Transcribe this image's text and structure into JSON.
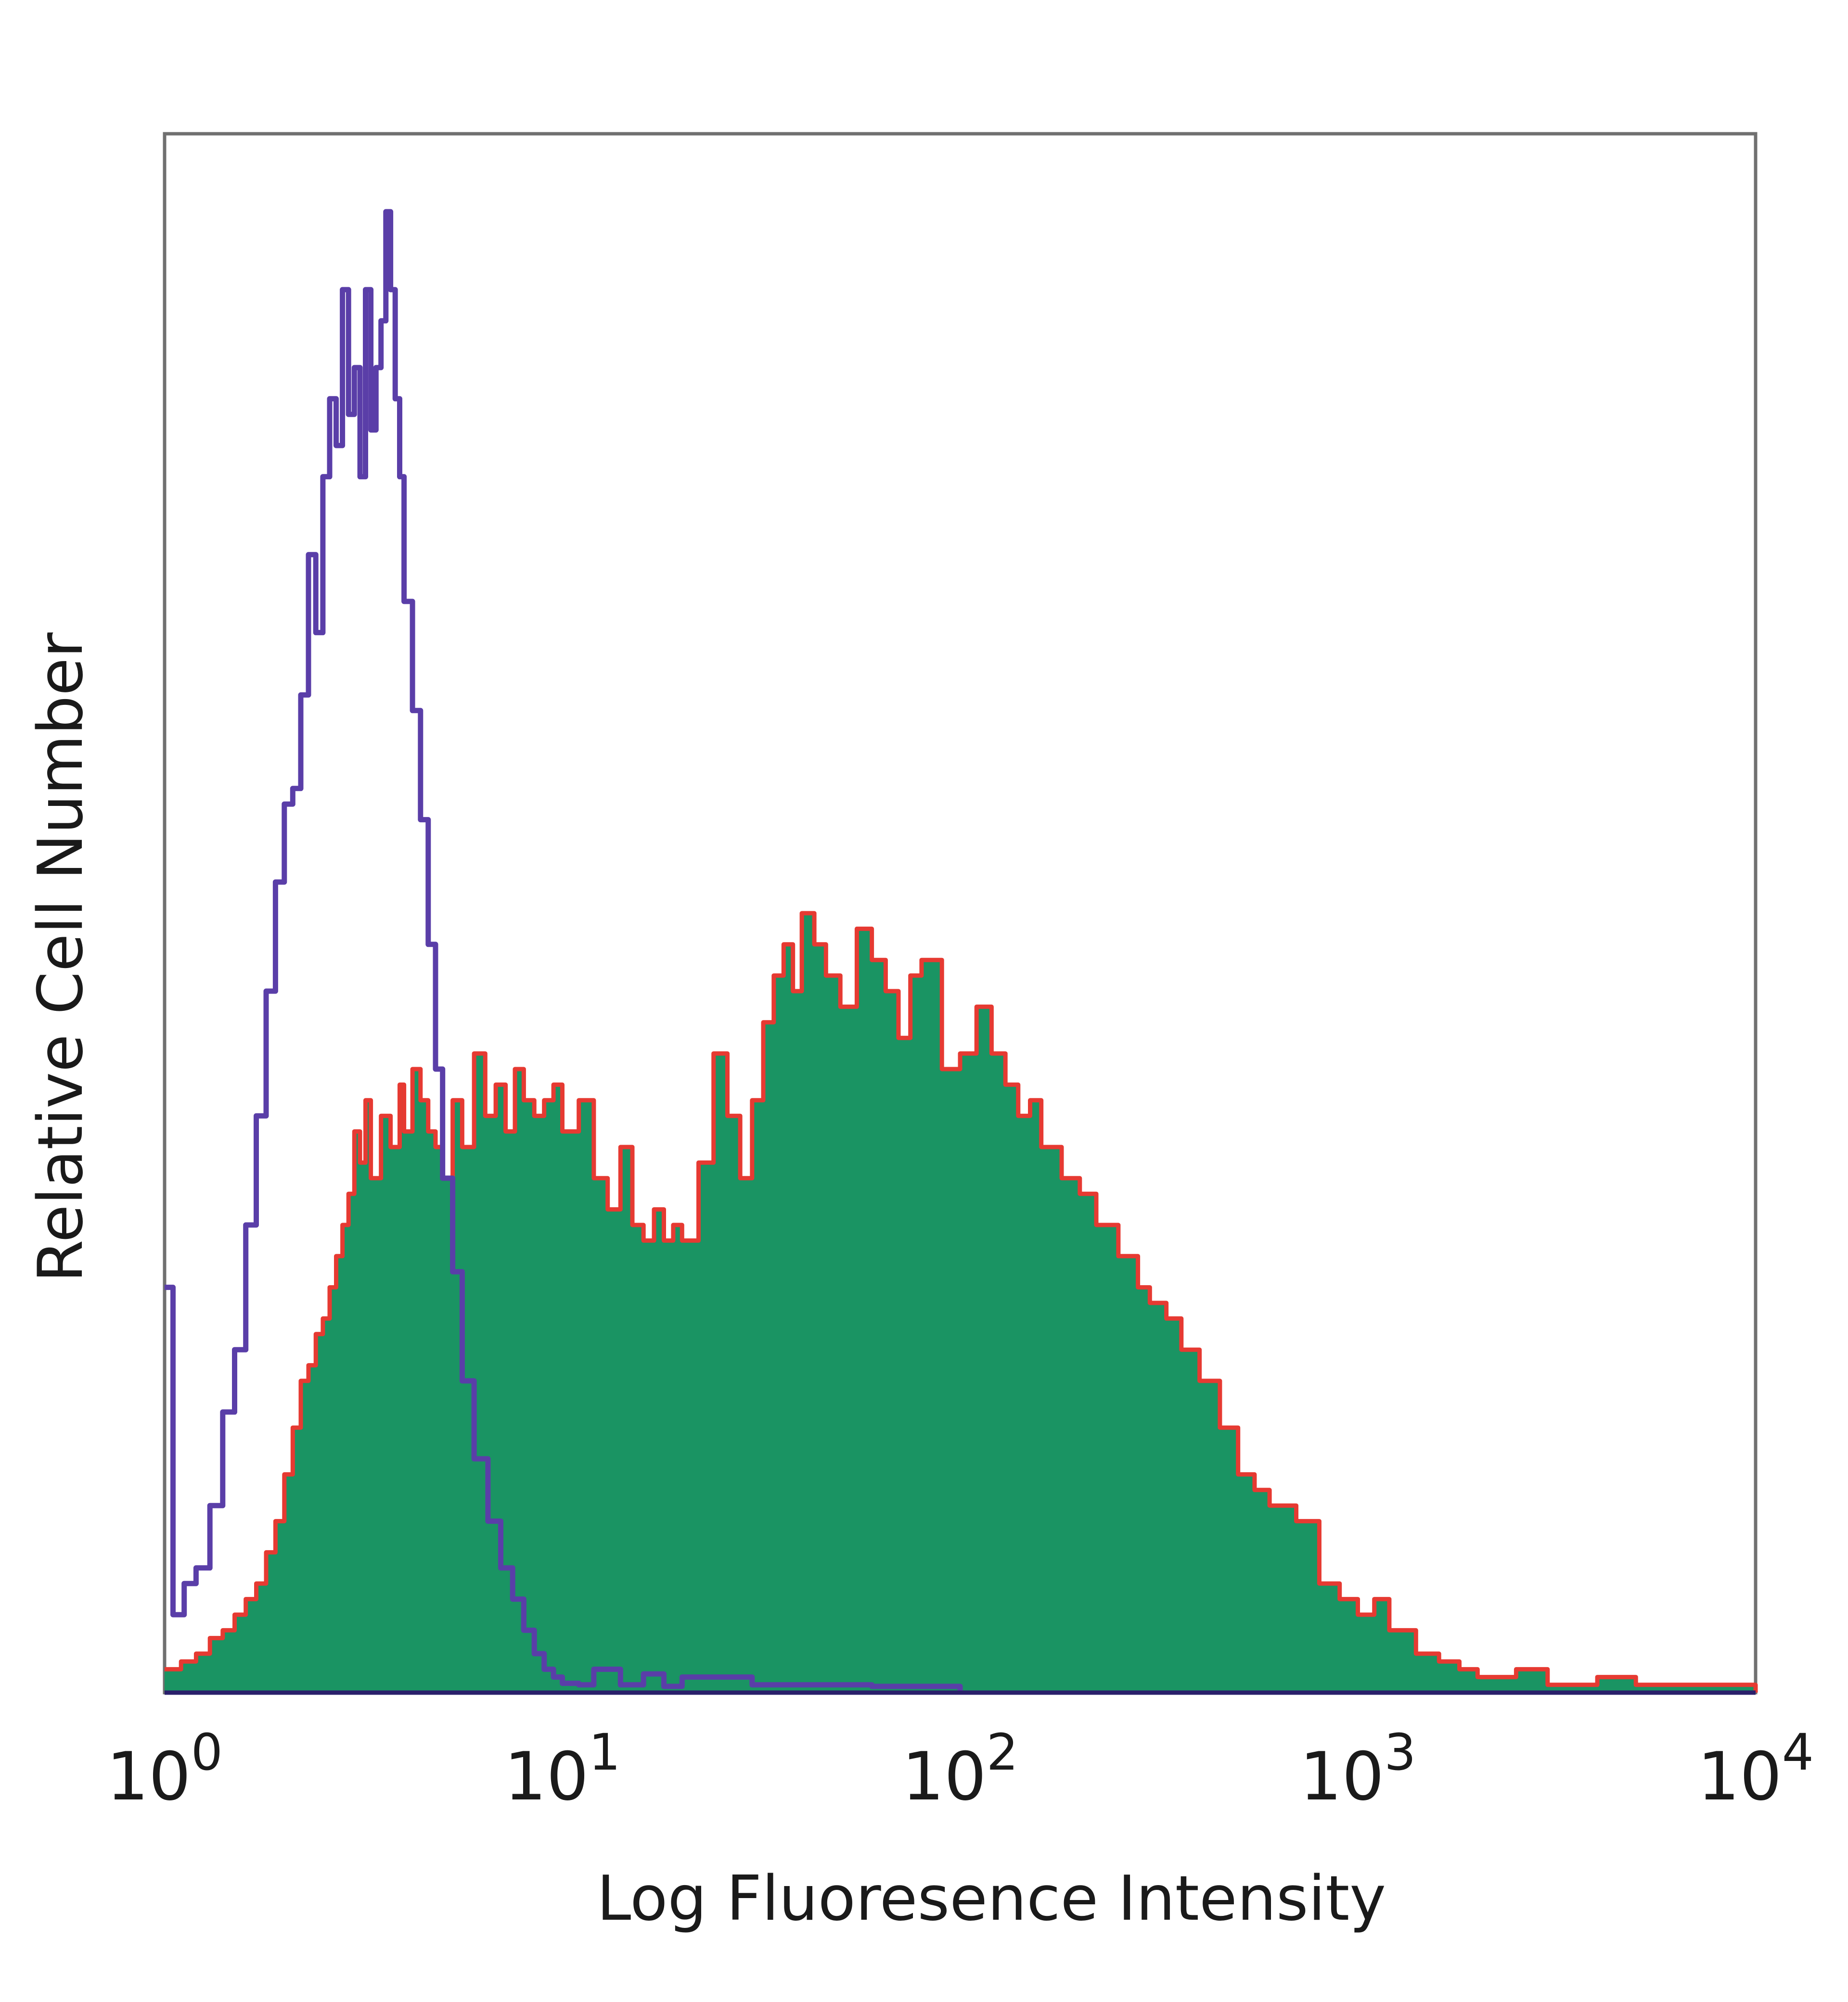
{
  "chart_data": {
    "type": "area",
    "title": "",
    "xlabel": "Log Fluoresence Intensity",
    "ylabel": "Relative Cell Number",
    "x_scale": "log",
    "xlim": [
      1,
      10000
    ],
    "ylim": [
      0,
      100
    ],
    "grid": false,
    "x_ticks": [
      {
        "value": 1,
        "base": "10",
        "exp": "0"
      },
      {
        "value": 10,
        "base": "10",
        "exp": "1"
      },
      {
        "value": 100,
        "base": "10",
        "exp": "2"
      },
      {
        "value": 1000,
        "base": "10",
        "exp": "3"
      },
      {
        "value": 10000,
        "base": "10",
        "exp": "4"
      }
    ],
    "series": [
      {
        "role": "control",
        "style": "line",
        "color": "#5a3ea8",
        "x": [
          1.0,
          1.05,
          1.12,
          1.2,
          1.3,
          1.4,
          1.5,
          1.6,
          1.7,
          1.8,
          1.9,
          2.0,
          2.1,
          2.2,
          2.3,
          2.4,
          2.5,
          2.6,
          2.7,
          2.8,
          2.9,
          3.0,
          3.1,
          3.2,
          3.3,
          3.4,
          3.5,
          3.6,
          3.7,
          3.8,
          3.9,
          4.0,
          4.2,
          4.4,
          4.6,
          4.8,
          5.0,
          5.3,
          5.6,
          6.0,
          6.5,
          7.0,
          7.5,
          8.0,
          8.5,
          9.0,
          9.5,
          10.0,
          11.0,
          12.0,
          14.0,
          16.0,
          18.0,
          20.0,
          30.0,
          60.0,
          100.0
        ],
        "y": [
          26,
          5,
          7,
          8,
          12,
          18,
          22,
          30,
          37,
          45,
          52,
          57,
          58,
          64,
          73,
          68,
          78,
          83,
          80,
          90,
          82,
          85,
          78,
          90,
          81,
          85,
          88,
          95,
          90,
          83,
          78,
          70,
          63,
          56,
          48,
          40,
          33,
          27,
          20,
          15,
          11,
          8,
          6,
          4,
          2.5,
          1.5,
          1,
          0.6,
          0.5,
          1.5,
          0.5,
          1.2,
          0.4,
          1.0,
          0.5,
          0.4,
          0
        ]
      },
      {
        "role": "stained",
        "style": "filled",
        "color": "#1a9463",
        "outline_color": "#e63a32",
        "x": [
          1.0,
          1.1,
          1.2,
          1.3,
          1.4,
          1.5,
          1.6,
          1.7,
          1.8,
          1.9,
          2.0,
          2.1,
          2.2,
          2.3,
          2.4,
          2.5,
          2.6,
          2.7,
          2.8,
          2.9,
          3.0,
          3.1,
          3.2,
          3.3,
          3.5,
          3.7,
          3.9,
          4.0,
          4.2,
          4.4,
          4.6,
          4.8,
          5.0,
          5.3,
          5.6,
          6.0,
          6.4,
          6.8,
          7.2,
          7.6,
          8.0,
          8.5,
          9.0,
          9.5,
          10.0,
          11.0,
          12.0,
          13.0,
          14.0,
          15.0,
          16.0,
          17.0,
          18.0,
          19.0,
          20.0,
          22.0,
          24.0,
          26.0,
          28.0,
          30.0,
          32.0,
          34.0,
          36.0,
          38.0,
          40.0,
          43.0,
          46.0,
          50.0,
          55.0,
          60.0,
          65.0,
          70.0,
          75.0,
          80.0,
          90.0,
          100.0,
          110.0,
          120.0,
          130.0,
          140.0,
          150.0,
          160.0,
          180.0,
          200.0,
          220.0,
          250.0,
          280.0,
          300.0,
          330.0,
          360.0,
          400.0,
          450.0,
          500.0,
          550.0,
          600.0,
          700.0,
          800.0,
          900.0,
          1000.0,
          1100.0,
          1200.0,
          1400.0,
          1600.0,
          1800.0,
          2000.0,
          2500.0,
          3000.0,
          4000.0,
          5000.0,
          10000.0
        ],
        "y": [
          1.5,
          2,
          2.5,
          3.5,
          4,
          5,
          6,
          7,
          9,
          11,
          14,
          17,
          20,
          21,
          23,
          24,
          26,
          28,
          30,
          32,
          36,
          34,
          38,
          33,
          37,
          35,
          39,
          36,
          40,
          38,
          36,
          35,
          33,
          38,
          35,
          41,
          37,
          39,
          36,
          40,
          38,
          37,
          38,
          39,
          36,
          38,
          33,
          31,
          35,
          30,
          29,
          31,
          29,
          30,
          29,
          34,
          41,
          37,
          33,
          38,
          43,
          46,
          48,
          45,
          50,
          48,
          46,
          44,
          49,
          47,
          45,
          42,
          46,
          47,
          40,
          41,
          44,
          41,
          39,
          37,
          38,
          35,
          33,
          32,
          30,
          28,
          26,
          25,
          24,
          22,
          20,
          17,
          14,
          13,
          12,
          11,
          7,
          6,
          5,
          6,
          4,
          2.5,
          2,
          1.5,
          1,
          1.5,
          0.5,
          1,
          0.5,
          0
        ]
      }
    ]
  }
}
